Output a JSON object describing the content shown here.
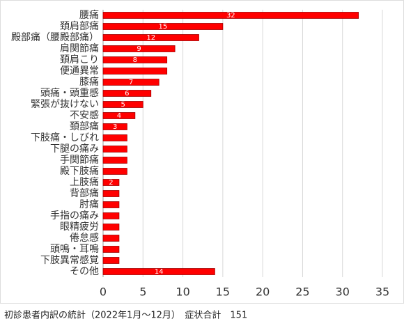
{
  "chart_data": {
    "type": "barh",
    "categories": [
      "腰痛",
      "頚肩部痛",
      "殿部痛（腰殿部痛）",
      "肩関節痛",
      "頚肩こり",
      "便通異常",
      "膝痛",
      "頭痛・頭重感",
      "緊張が抜けない",
      "不安感",
      "頚部痛",
      "下肢痛・しびれ",
      "下腿の痛み",
      "手関節痛",
      "殿下肢痛",
      "上肢痛",
      "背部痛",
      "肘痛",
      "手指の痛み",
      "眼精疲労",
      "倦怠感",
      "頭鳴・耳鳴",
      "下肢異常感覚",
      "その他"
    ],
    "values": [
      32,
      15,
      12,
      9,
      8,
      8,
      7,
      6,
      5,
      4,
      3,
      3,
      3,
      3,
      3,
      2,
      2,
      2,
      2,
      2,
      2,
      2,
      2,
      14
    ],
    "value_labels": [
      "32",
      "15",
      "12",
      "9",
      "8",
      null,
      "7",
      "6",
      "5",
      "4",
      "3",
      null,
      null,
      null,
      null,
      "2",
      null,
      null,
      null,
      null,
      null,
      null,
      null,
      "14"
    ],
    "color": "#ff0000",
    "xlim": [
      0,
      35
    ],
    "xticks": [
      0,
      5,
      10,
      15,
      20,
      25,
      30,
      35
    ],
    "grid": true,
    "caption": "初診患者内訳の統計（2022年1月～12月）　症状合計　151"
  }
}
